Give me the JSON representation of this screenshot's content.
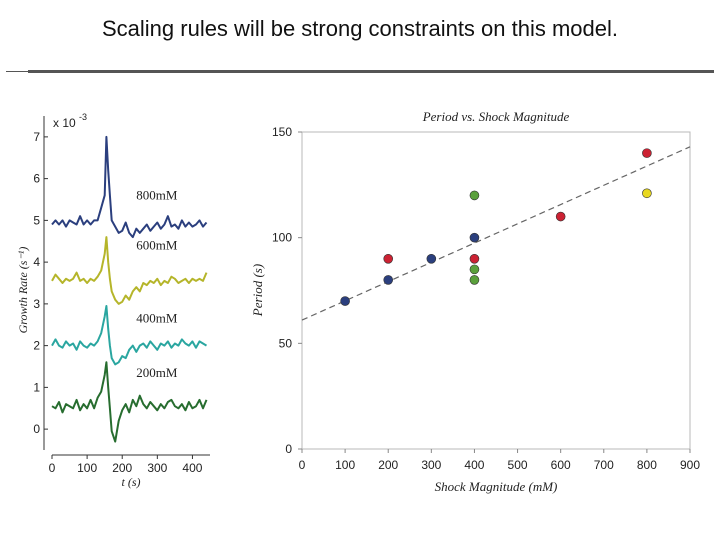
{
  "slide": {
    "title": "Scaling rules will be strong constraints on this model."
  },
  "chart_data": [
    {
      "type": "line",
      "title": "",
      "xlabel": "t (s)",
      "ylabel": "Growth Rate (s⁻¹)",
      "y_exponent_label": "x 10",
      "y_exponent_power": "-3",
      "xlim": [
        0,
        450
      ],
      "ylim": [
        -0.5,
        7.5
      ],
      "x_ticks": [
        0,
        100,
        200,
        300,
        400
      ],
      "y_ticks": [
        0,
        1,
        2,
        3,
        4,
        5,
        6,
        7
      ],
      "series": [
        {
          "name": "800mM",
          "color": "#2b3f7e",
          "x": [
            0,
            10,
            20,
            30,
            40,
            50,
            60,
            70,
            80,
            90,
            100,
            110,
            120,
            130,
            140,
            150,
            155,
            160,
            165,
            170,
            180,
            190,
            200,
            210,
            220,
            230,
            240,
            250,
            260,
            270,
            280,
            290,
            300,
            310,
            320,
            330,
            340,
            350,
            360,
            370,
            380,
            390,
            400,
            410,
            420,
            430,
            440
          ],
          "values": [
            4.9,
            5.0,
            4.9,
            5.0,
            4.85,
            5.0,
            4.95,
            4.9,
            5.1,
            4.9,
            5.0,
            4.9,
            5.0,
            5.0,
            5.3,
            5.6,
            7.0,
            6.2,
            5.6,
            5.0,
            4.85,
            4.7,
            4.75,
            4.95,
            4.7,
            4.6,
            4.8,
            4.7,
            4.8,
            4.9,
            4.75,
            4.85,
            4.95,
            4.8,
            4.9,
            5.1,
            4.85,
            4.9,
            4.8,
            5.0,
            4.85,
            4.95,
            4.85,
            4.9,
            5.0,
            4.85,
            4.95
          ]
        },
        {
          "name": "600mM",
          "color": "#b5b52a",
          "x": [
            0,
            10,
            20,
            30,
            40,
            50,
            60,
            70,
            80,
            90,
            100,
            110,
            120,
            130,
            140,
            150,
            155,
            160,
            165,
            170,
            180,
            190,
            200,
            210,
            220,
            230,
            240,
            250,
            260,
            270,
            280,
            290,
            300,
            310,
            320,
            330,
            340,
            350,
            360,
            370,
            380,
            390,
            400,
            410,
            420,
            430,
            440
          ],
          "values": [
            3.55,
            3.7,
            3.6,
            3.5,
            3.6,
            3.55,
            3.6,
            3.75,
            3.55,
            3.6,
            3.5,
            3.6,
            3.55,
            3.65,
            3.8,
            4.2,
            4.6,
            4.0,
            3.6,
            3.3,
            3.1,
            3.0,
            3.05,
            3.2,
            3.1,
            3.3,
            3.4,
            3.3,
            3.5,
            3.45,
            3.55,
            3.5,
            3.6,
            3.45,
            3.55,
            3.5,
            3.65,
            3.6,
            3.5,
            3.55,
            3.6,
            3.5,
            3.6,
            3.55,
            3.6,
            3.55,
            3.75
          ]
        },
        {
          "name": "400mM",
          "color": "#2aa6a0",
          "x": [
            0,
            10,
            20,
            30,
            40,
            50,
            60,
            70,
            80,
            90,
            100,
            110,
            120,
            130,
            140,
            150,
            155,
            160,
            165,
            170,
            180,
            190,
            200,
            210,
            220,
            230,
            240,
            250,
            260,
            270,
            280,
            290,
            300,
            310,
            320,
            330,
            340,
            350,
            360,
            370,
            380,
            390,
            400,
            410,
            420,
            430,
            440
          ],
          "values": [
            2.0,
            2.15,
            2.0,
            1.95,
            2.1,
            2.0,
            2.05,
            1.9,
            2.1,
            2.0,
            1.95,
            2.05,
            2.0,
            2.1,
            2.3,
            2.7,
            2.95,
            2.4,
            2.0,
            1.7,
            1.55,
            1.6,
            1.75,
            1.7,
            1.9,
            2.0,
            1.85,
            2.0,
            2.05,
            1.95,
            2.1,
            2.0,
            1.9,
            2.05,
            2.0,
            2.1,
            1.95,
            2.05,
            2.0,
            2.15,
            2.05,
            2.0,
            2.1,
            1.95,
            2.1,
            2.05,
            2.0
          ]
        },
        {
          "name": "200mM",
          "color": "#276d2f",
          "x": [
            0,
            10,
            20,
            30,
            40,
            50,
            60,
            70,
            80,
            90,
            100,
            110,
            120,
            130,
            140,
            150,
            155,
            160,
            165,
            170,
            180,
            190,
            200,
            210,
            220,
            230,
            240,
            250,
            260,
            270,
            280,
            290,
            300,
            310,
            320,
            330,
            340,
            350,
            360,
            370,
            380,
            390,
            400,
            410,
            420,
            430,
            440
          ],
          "values": [
            0.55,
            0.5,
            0.65,
            0.4,
            0.6,
            0.55,
            0.5,
            0.7,
            0.45,
            0.6,
            0.5,
            0.7,
            0.5,
            0.75,
            0.9,
            1.3,
            1.6,
            1.0,
            0.5,
            -0.05,
            -0.3,
            0.2,
            0.45,
            0.6,
            0.4,
            0.7,
            0.55,
            0.8,
            0.6,
            0.5,
            0.65,
            0.55,
            0.45,
            0.6,
            0.5,
            0.65,
            0.7,
            0.55,
            0.5,
            0.6,
            0.45,
            0.65,
            0.5,
            0.55,
            0.7,
            0.5,
            0.7
          ]
        }
      ]
    },
    {
      "type": "scatter",
      "title": "Period vs. Shock Magnitude",
      "xlabel": "Shock Magnitude (mM)",
      "ylabel": "Period (s)",
      "xlim": [
        0,
        900
      ],
      "ylim": [
        0,
        150
      ],
      "x_ticks": [
        0,
        100,
        200,
        300,
        400,
        500,
        600,
        700,
        800,
        900
      ],
      "y_ticks": [
        0,
        50,
        100,
        150
      ],
      "fit_line": {
        "x": [
          0,
          900
        ],
        "y": [
          61,
          143
        ]
      },
      "points": [
        {
          "x": 100,
          "y": 70,
          "color": "#2b3f7e"
        },
        {
          "x": 200,
          "y": 80,
          "color": "#2b3f7e"
        },
        {
          "x": 200,
          "y": 90,
          "color": "#cc2233"
        },
        {
          "x": 300,
          "y": 90,
          "color": "#2b3f7e"
        },
        {
          "x": 400,
          "y": 100,
          "color": "#2b3f7e"
        },
        {
          "x": 400,
          "y": 90,
          "color": "#cc2233"
        },
        {
          "x": 400,
          "y": 120,
          "color": "#5aa03c"
        },
        {
          "x": 400,
          "y": 85,
          "color": "#5aa03c"
        },
        {
          "x": 400,
          "y": 80,
          "color": "#5aa03c"
        },
        {
          "x": 600,
          "y": 110,
          "color": "#cc2233"
        },
        {
          "x": 800,
          "y": 140,
          "color": "#cc2233"
        },
        {
          "x": 800,
          "y": 121,
          "color": "#e8d820"
        }
      ]
    }
  ]
}
